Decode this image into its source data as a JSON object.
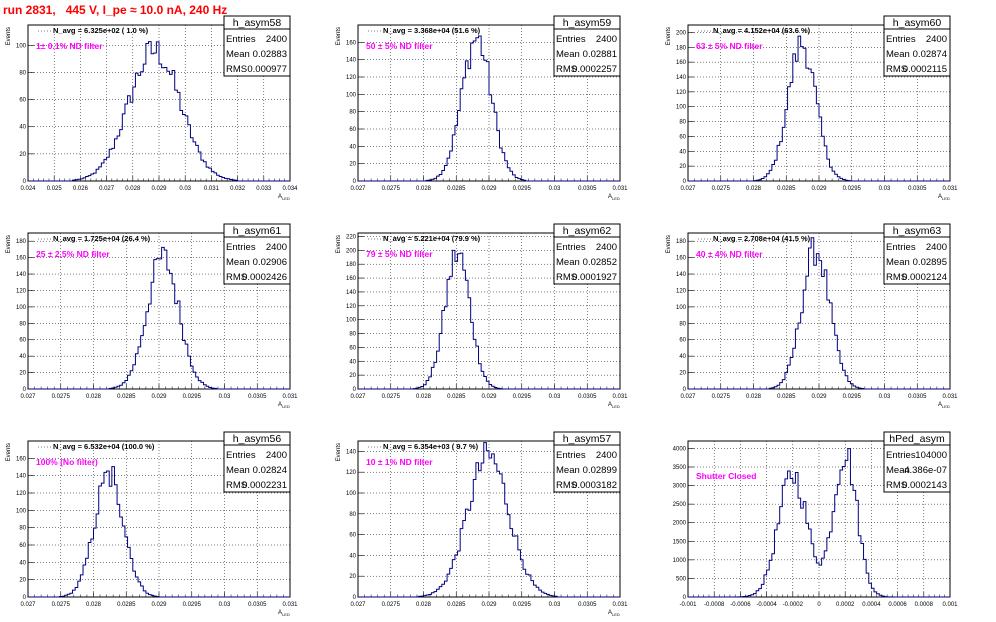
{
  "page_title": "run 2831,   445 V, I_pe ≈ 10.0 nA, 240 Hz",
  "colors": {
    "title": "#ff0000",
    "histogram": "#000080",
    "annotation": "#ff00ff",
    "grid": "#000000"
  },
  "chart_data": [
    {
      "type": "histogram",
      "name": "h_asym58",
      "stats": {
        "entries": "2400",
        "mean": "0.02883",
        "rms": "0.000977"
      },
      "stat_labels": [
        "Entries",
        "Mean",
        "RMS"
      ],
      "top_label": "N_avg = 6.325e+02 ( 1.0 %)",
      "annotation": "1± 0.1% ND filter",
      "ylabel": "Events",
      "xlabel": "A_LED",
      "xlim": [
        0.024,
        0.034
      ],
      "ylim": [
        0,
        115
      ],
      "xticks": [
        "0.024",
        "0.025",
        "0.026",
        "0.027",
        "0.028",
        "0.029",
        "0.03",
        "0.031",
        "0.032",
        "0.033",
        "0.034"
      ],
      "yticks": [
        0,
        20,
        40,
        60,
        80,
        100
      ],
      "mean": 0.02883,
      "sigma": 0.000977,
      "peak": 96
    },
    {
      "type": "histogram",
      "name": "h_asym59",
      "stats": {
        "entries": "2400",
        "mean": "0.02881",
        "rms": "0.0002257"
      },
      "stat_labels": [
        "Entries",
        "Mean",
        "RMS"
      ],
      "top_label": "N_avg = 3.368e+04 (51.6 %)",
      "annotation": "50 ± 5% ND filter",
      "ylabel": "Events",
      "xlabel": "A_LED",
      "xlim": [
        0.027,
        0.031
      ],
      "ylim": [
        0,
        180
      ],
      "xticks": [
        "0.027",
        "0.0275",
        "0.028",
        "0.0285",
        "0.029",
        "0.0295",
        "0.03",
        "0.0305",
        "0.031"
      ],
      "yticks": [
        0,
        20,
        40,
        60,
        80,
        100,
        120,
        140,
        160
      ],
      "mean": 0.02881,
      "sigma": 0.0002257,
      "peak": 165
    },
    {
      "type": "histogram",
      "name": "h_asym60",
      "stats": {
        "entries": "2400",
        "mean": "0.02874",
        "rms": "0.0002115"
      },
      "stat_labels": [
        "Entries",
        "Mean",
        "RMS"
      ],
      "top_label": "N_avg = 4.152e+04 (63.6 %)",
      "annotation": "63 ± 5% ND filter",
      "ylabel": "Events",
      "xlabel": "A_LED",
      "xlim": [
        0.027,
        0.031
      ],
      "ylim": [
        0,
        210
      ],
      "xticks": [
        "0.027",
        "0.0275",
        "0.028",
        "0.0285",
        "0.029",
        "0.0295",
        "0.03",
        "0.0305",
        "0.031"
      ],
      "yticks": [
        0,
        20,
        40,
        60,
        80,
        100,
        120,
        140,
        160,
        180,
        200
      ],
      "mean": 0.02874,
      "sigma": 0.0002115,
      "peak": 185
    },
    {
      "type": "histogram",
      "name": "h_asym61",
      "stats": {
        "entries": "2400",
        "mean": "0.02906",
        "rms": "0.0002426"
      },
      "stat_labels": [
        "Entries",
        "Mean",
        "RMS"
      ],
      "top_label": "N_avg = 1.725e+04 (26.4 %)",
      "annotation": "25 ± 2.5% ND filter",
      "ylabel": "Events",
      "xlabel": "A_LED",
      "xlim": [
        0.027,
        0.031
      ],
      "ylim": [
        0,
        190
      ],
      "xticks": [
        "0.027",
        "0.0275",
        "0.028",
        "0.0285",
        "0.029",
        "0.0295",
        "0.03",
        "0.0305",
        "0.031"
      ],
      "yticks": [
        0,
        20,
        40,
        60,
        80,
        100,
        120,
        140,
        160,
        180
      ],
      "mean": 0.02906,
      "sigma": 0.0002426,
      "peak": 160
    },
    {
      "type": "histogram",
      "name": "h_asym62",
      "stats": {
        "entries": "2400",
        "mean": "0.02852",
        "rms": "0.0001927"
      },
      "stat_labels": [
        "Entries",
        "Mean",
        "RMS"
      ],
      "top_label": "N_avg = 5.221e+04 (79.9 %)",
      "annotation": "79 ± 5% ND filter",
      "ylabel": "Events",
      "xlabel": "A_LED",
      "xlim": [
        0.027,
        0.031
      ],
      "ylim": [
        0,
        225
      ],
      "xticks": [
        "0.027",
        "0.0275",
        "0.028",
        "0.0285",
        "0.029",
        "0.0295",
        "0.03",
        "0.0305",
        "0.031"
      ],
      "yticks": [
        0,
        20,
        40,
        60,
        80,
        100,
        120,
        140,
        160,
        180,
        200,
        220
      ],
      "mean": 0.02852,
      "sigma": 0.0001927,
      "peak": 195
    },
    {
      "type": "histogram",
      "name": "h_asym63",
      "stats": {
        "entries": "2400",
        "mean": "0.02895",
        "rms": "0.0002124"
      },
      "stat_labels": [
        "Entries",
        "Mean",
        "RMS"
      ],
      "top_label": "N_avg = 2.708e+04 (41.5 %)",
      "annotation": "40 ± 4% ND filter",
      "ylabel": "Events",
      "xlabel": "A_LED",
      "xlim": [
        0.027,
        0.031
      ],
      "ylim": [
        0,
        190
      ],
      "xticks": [
        "0.027",
        "0.0275",
        "0.028",
        "0.0285",
        "0.029",
        "0.0295",
        "0.03",
        "0.0305",
        "0.031"
      ],
      "yticks": [
        0,
        20,
        40,
        60,
        80,
        100,
        120,
        140,
        160,
        180
      ],
      "mean": 0.02895,
      "sigma": 0.0002124,
      "peak": 170
    },
    {
      "type": "histogram",
      "name": "h_asym56",
      "stats": {
        "entries": "2400",
        "mean": "0.02824",
        "rms": "0.0002231"
      },
      "stat_labels": [
        "Entries",
        "Mean",
        "RMS"
      ],
      "top_label": "N_avg = 6.532e+04 (100.0 %)",
      "annotation": "100% (No filter)",
      "ylabel": "Events",
      "xlabel": "A_LED",
      "xlim": [
        0.027,
        0.031
      ],
      "ylim": [
        0,
        180
      ],
      "xticks": [
        "0.027",
        "0.0275",
        "0.028",
        "0.0285",
        "0.029",
        "0.0295",
        "0.03",
        "0.0305",
        "0.031"
      ],
      "yticks": [
        0,
        20,
        40,
        60,
        80,
        100,
        120,
        140,
        160
      ],
      "mean": 0.02824,
      "sigma": 0.0002231,
      "peak": 142,
      "flat_top": true
    },
    {
      "type": "histogram",
      "name": "h_asym57",
      "stats": {
        "entries": "2400",
        "mean": "0.02899",
        "rms": "0.0003182"
      },
      "stat_labels": [
        "Entries",
        "Mean",
        "RMS"
      ],
      "top_label": "N_avg = 6.354e+03 ( 9.7 %)",
      "annotation": "10 ± 1% ND filter",
      "ylabel": "Events",
      "xlabel": "A_LED",
      "xlim": [
        0.027,
        0.031
      ],
      "ylim": [
        0,
        150
      ],
      "xticks": [
        "0.027",
        "0.0275",
        "0.028",
        "0.0285",
        "0.029",
        "0.0295",
        "0.03",
        "0.0305",
        "0.031"
      ],
      "yticks": [
        0,
        20,
        40,
        60,
        80,
        100,
        120,
        140
      ],
      "mean": 0.02899,
      "sigma": 0.0003182,
      "peak": 135
    },
    {
      "type": "histogram",
      "name": "hPed_asym",
      "stats": {
        "entries": "104000",
        "mean": "-4.386e-07",
        "rms": "0.0002143"
      },
      "stat_labels": [
        "Entries",
        "Mean",
        "RMS"
      ],
      "top_label": "",
      "annotation": "Shutter Closed",
      "ylabel": "",
      "xlabel": "",
      "xlim": [
        -0.001,
        0.001
      ],
      "ylim": [
        0,
        4200
      ],
      "xticks": [
        "-0.001",
        "-0.0008",
        "-0.0006",
        "-0.0004",
        "-0.0002",
        "0",
        "0.0002",
        "0.0004",
        "0.0006",
        "0.0008",
        "0.001"
      ],
      "yticks": [
        0,
        500,
        1000,
        1500,
        2000,
        2500,
        3000,
        3500,
        4000
      ],
      "double_peak": [
        {
          "mean": -0.0002,
          "sigma": 0.00011,
          "peak": 3300
        },
        {
          "mean": 0.0002,
          "sigma": 9e-05,
          "peak": 3900
        }
      ]
    }
  ]
}
